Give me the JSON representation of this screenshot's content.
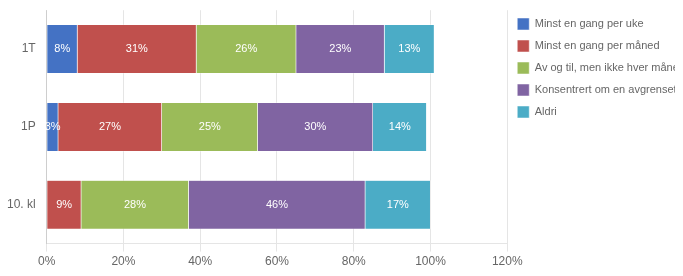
{
  "chart_data": {
    "type": "bar",
    "orientation": "horizontal",
    "stacked": true,
    "data_labels": true,
    "grid": "x",
    "legend": "right",
    "categories": [
      "1T",
      "1P",
      "10. kl"
    ],
    "series": [
      {
        "name": "Minst en gang per uke",
        "color": "#4472C4",
        "values": [
          8,
          3,
          0
        ],
        "value_labels": [
          "8%",
          "3%",
          null
        ]
      },
      {
        "name": "Minst en gang per måned",
        "color": "#C0504D",
        "values": [
          31,
          27,
          9
        ],
        "value_labels": [
          "31%",
          "27%",
          "9%"
        ]
      },
      {
        "name": "Av og til, men ikke hver måned",
        "color": "#9BBB59",
        "values": [
          26,
          25,
          28
        ],
        "value_labels": [
          "26%",
          "25%",
          "28%"
        ]
      },
      {
        "name": "Konsentrert om en avgrenset periode",
        "color": "#8064A2",
        "values": [
          23,
          30,
          46
        ],
        "value_labels": [
          "23%",
          "30%",
          "46%"
        ]
      },
      {
        "name": "Aldri",
        "color": "#4BACC6",
        "values": [
          13,
          14,
          17
        ],
        "value_labels": [
          "13%",
          "14%",
          "17%"
        ]
      }
    ],
    "xlim": [
      0,
      120
    ],
    "xticks": [
      {
        "value": 0,
        "label": "0%"
      },
      {
        "value": 20,
        "label": "20%"
      },
      {
        "value": 40,
        "label": "40%"
      },
      {
        "value": 60,
        "label": "60%"
      },
      {
        "value": 80,
        "label": "80%"
      },
      {
        "value": 100,
        "label": "100%"
      },
      {
        "value": 120,
        "label": "120%"
      }
    ]
  }
}
